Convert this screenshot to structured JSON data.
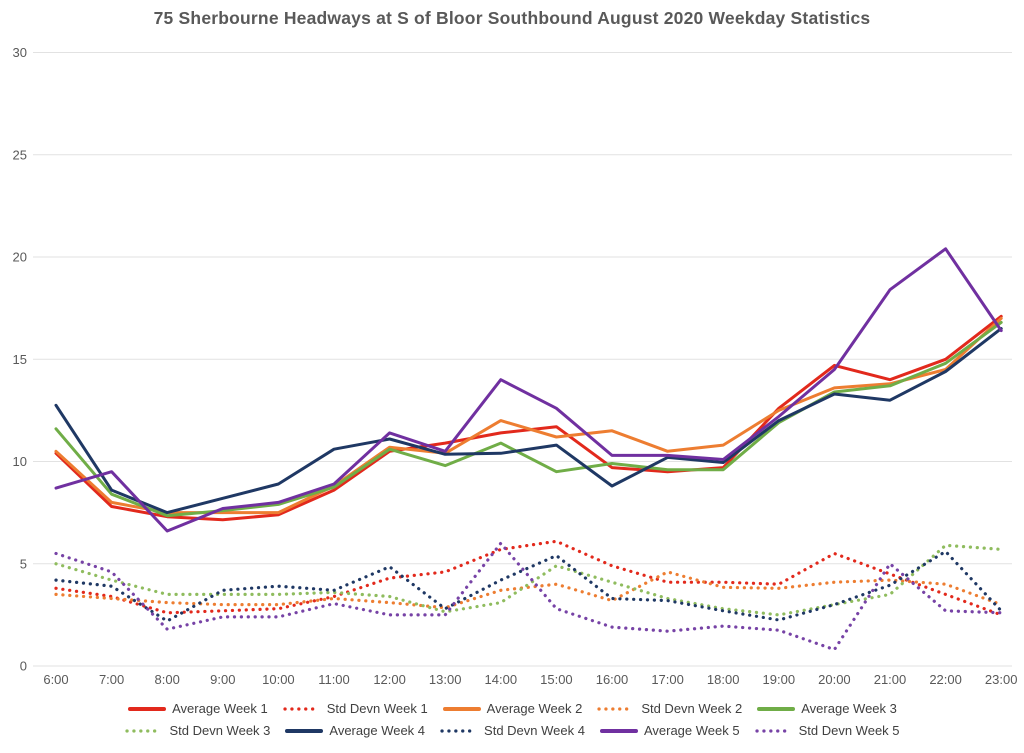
{
  "chart_data": {
    "type": "line",
    "title": "75 Sherbourne Headways at S of Bloor Southbound August 2020 Weekday Statistics",
    "xlabel": "",
    "ylabel": "",
    "x_labels": [
      "6:00",
      "7:00",
      "8:00",
      "9:00",
      "10:00",
      "11:00",
      "12:00",
      "13:00",
      "14:00",
      "15:00",
      "16:00",
      "17:00",
      "18:00",
      "19:00",
      "20:00",
      "21:00",
      "22:00",
      "23:00"
    ],
    "ylim": [
      0,
      30
    ],
    "y_ticks": [
      0,
      5,
      10,
      15,
      20,
      25,
      30
    ],
    "grid": true,
    "legend_position": "bottom",
    "legend_rows": [
      [
        0,
        1,
        2,
        3,
        4
      ],
      [
        5,
        6,
        7,
        8,
        9
      ]
    ],
    "series": [
      {
        "name": "Average Week 1",
        "style": "solid",
        "color": "#e2291c",
        "values": [
          10.4,
          7.8,
          7.3,
          7.15,
          7.4,
          8.6,
          10.5,
          10.9,
          11.4,
          11.7,
          9.7,
          9.5,
          9.7,
          12.6,
          14.7,
          14.0,
          15.0,
          17.1
        ]
      },
      {
        "name": "Std Devn Week 1",
        "style": "dotted",
        "color": "#e2291c",
        "values": [
          3.8,
          3.4,
          2.6,
          2.7,
          2.8,
          3.4,
          4.3,
          4.6,
          5.7,
          6.1,
          4.9,
          4.1,
          4.1,
          4.0,
          5.5,
          4.5,
          3.5,
          2.5
        ]
      },
      {
        "name": "Average Week 2",
        "style": "solid",
        "color": "#ed7d31",
        "values": [
          10.5,
          8.0,
          7.5,
          7.5,
          7.5,
          8.8,
          10.7,
          10.4,
          12.0,
          11.2,
          11.5,
          10.5,
          10.8,
          12.5,
          13.6,
          13.8,
          14.5,
          17.0
        ]
      },
      {
        "name": "Std Devn Week 2",
        "style": "dotted",
        "color": "#ed7d31",
        "values": [
          3.5,
          3.3,
          3.1,
          3.0,
          3.0,
          3.3,
          3.1,
          2.85,
          3.7,
          4.0,
          3.2,
          4.6,
          3.85,
          3.8,
          4.1,
          4.2,
          4.0,
          3.0
        ]
      },
      {
        "name": "Average Week 3",
        "style": "solid",
        "color": "#70ad47",
        "values": [
          11.6,
          8.4,
          7.35,
          7.6,
          7.9,
          8.75,
          10.6,
          9.8,
          10.9,
          9.5,
          9.9,
          9.6,
          9.6,
          11.9,
          13.4,
          13.7,
          14.8,
          16.8
        ]
      },
      {
        "name": "Std Devn Week 3",
        "style": "dotted",
        "color": "#8fbc5e",
        "values": [
          5.0,
          4.2,
          3.5,
          3.5,
          3.5,
          3.6,
          3.4,
          2.65,
          3.1,
          4.9,
          4.1,
          3.3,
          2.8,
          2.5,
          3.0,
          3.5,
          5.9,
          5.7
        ]
      },
      {
        "name": "Average Week 4",
        "style": "solid",
        "color": "#1f3864",
        "values": [
          12.75,
          8.6,
          7.5,
          8.2,
          8.9,
          10.6,
          11.1,
          10.35,
          10.4,
          10.8,
          8.8,
          10.2,
          9.95,
          12.0,
          13.3,
          13.0,
          14.4,
          16.5
        ]
      },
      {
        "name": "Std Devn Week 4",
        "style": "dotted",
        "color": "#1f3864",
        "values": [
          4.2,
          3.9,
          2.2,
          3.7,
          3.9,
          3.7,
          4.85,
          2.8,
          4.2,
          5.4,
          3.3,
          3.2,
          2.7,
          2.25,
          3.0,
          3.95,
          5.6,
          2.7
        ]
      },
      {
        "name": "Average Week 5",
        "style": "solid",
        "color": "#7030a0",
        "values": [
          8.7,
          9.5,
          6.6,
          7.7,
          8.0,
          8.9,
          11.4,
          10.5,
          14.0,
          12.6,
          10.3,
          10.3,
          10.1,
          12.2,
          14.5,
          18.4,
          20.4,
          16.4
        ]
      },
      {
        "name": "Std Devn Week 5",
        "style": "dotted",
        "color": "#7743a6",
        "values": [
          5.5,
          4.6,
          1.8,
          2.4,
          2.4,
          3.05,
          2.5,
          2.5,
          6.0,
          2.8,
          1.9,
          1.7,
          1.95,
          1.75,
          0.8,
          5.0,
          2.7,
          2.6
        ]
      }
    ],
    "gridline_color": "#e2e2e2",
    "axis_label_color": "#595959"
  }
}
